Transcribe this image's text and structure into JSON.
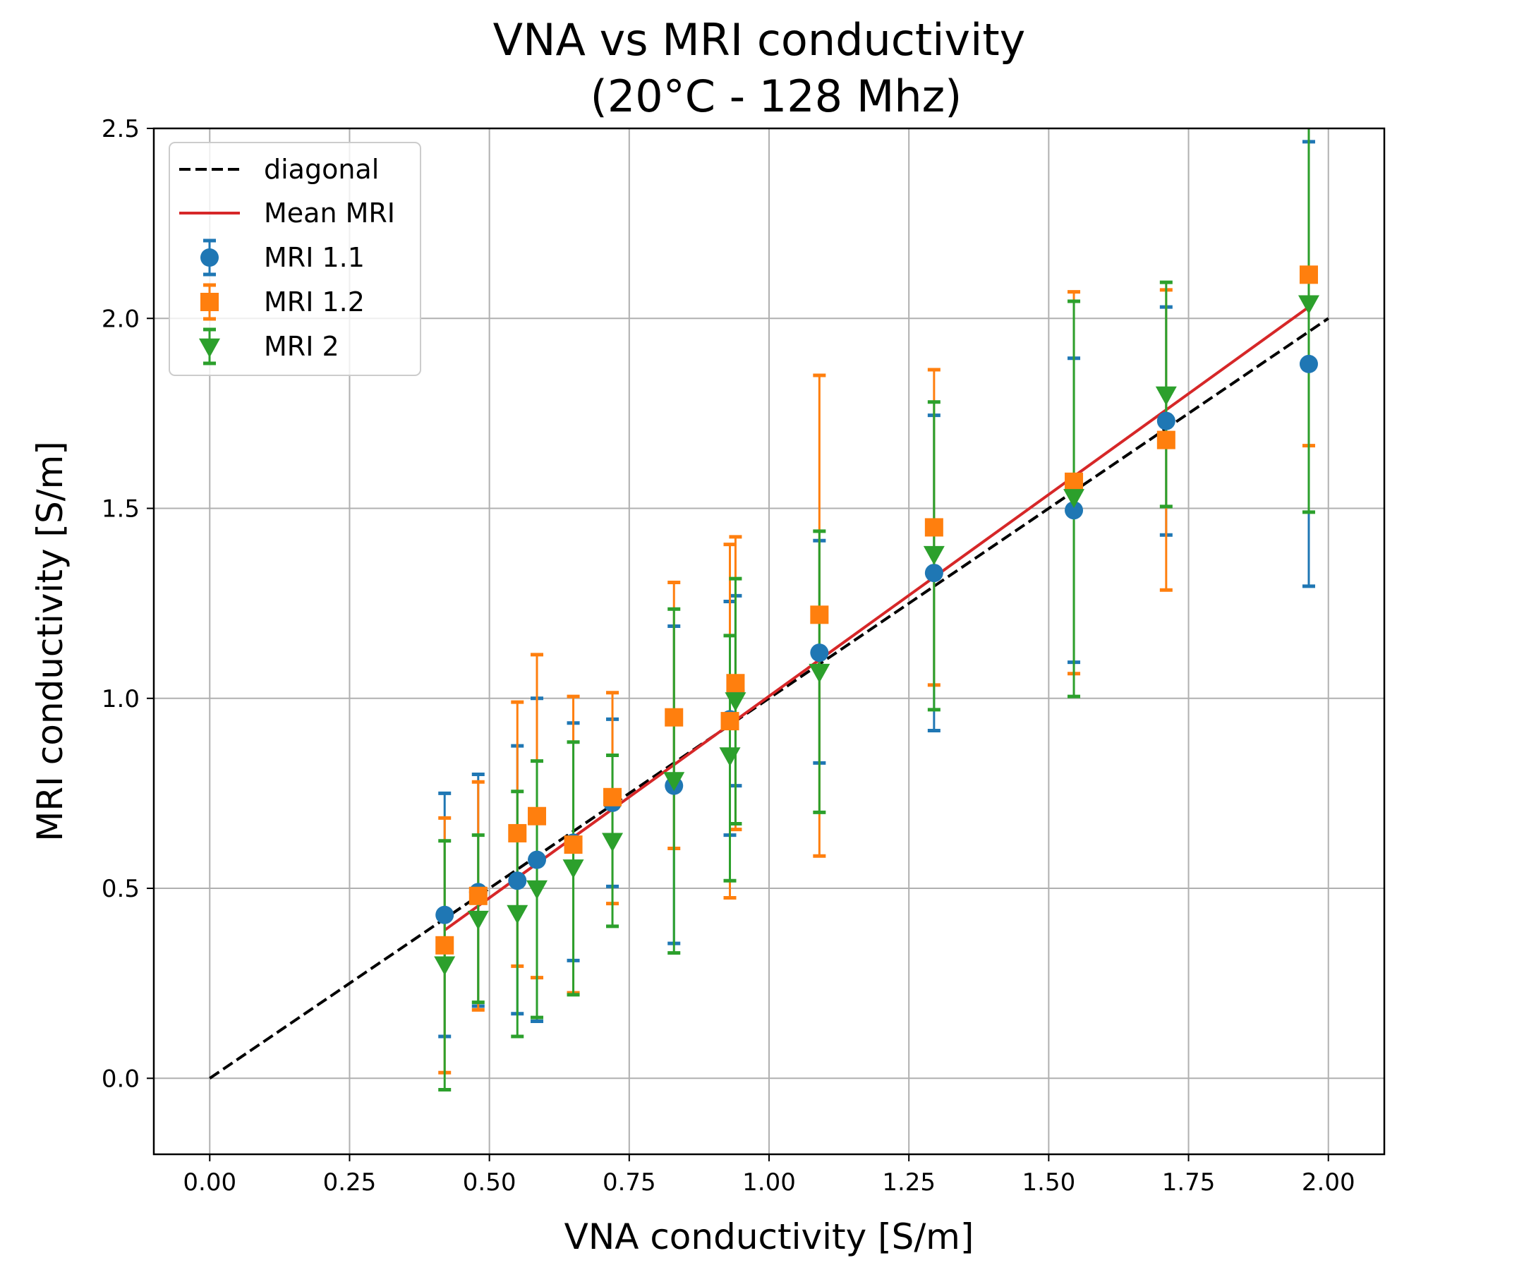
{
  "chart_data": {
    "type": "scatter",
    "title_line1": "VNA vs MRI conductivity",
    "title_line2": "(20°C - 128 Mhz)",
    "xlabel": "VNA conductivity [S/m]",
    "ylabel": "MRI conductivity [S/m]",
    "xlim": [
      -0.1,
      2.1
    ],
    "ylim": [
      -0.2,
      2.5
    ],
    "x_ticks": [
      0.0,
      0.25,
      0.5,
      0.75,
      1.0,
      1.25,
      1.5,
      1.75,
      2.0
    ],
    "x_tick_labels": [
      "0.00",
      "0.25",
      "0.50",
      "0.75",
      "1.00",
      "1.25",
      "1.50",
      "1.75",
      "2.00"
    ],
    "y_ticks": [
      0.0,
      0.5,
      1.0,
      1.5,
      2.0,
      2.5
    ],
    "y_tick_labels": [
      "0.0",
      "0.5",
      "1.0",
      "1.5",
      "2.0",
      "2.5"
    ],
    "grid": true,
    "legend_position": "top-left",
    "x": [
      0.42,
      0.48,
      0.55,
      0.585,
      0.65,
      0.72,
      0.83,
      0.93,
      0.94,
      1.09,
      1.295,
      1.545,
      1.71,
      1.965
    ],
    "lines": [
      {
        "name": "diagonal",
        "color": "#000000",
        "dash": true,
        "x": [
          0.0,
          2.0
        ],
        "y": [
          0.0,
          2.0
        ]
      },
      {
        "name": "Mean MRI",
        "color": "#d62728",
        "dash": false,
        "x": [
          0.42,
          1.965
        ],
        "y": [
          0.39,
          2.03
        ]
      }
    ],
    "series": [
      {
        "name": "MRI 1.1",
        "marker": "circle",
        "color": "#1f77b4",
        "y": [
          0.43,
          0.49,
          0.52,
          0.575,
          0.62,
          0.725,
          0.77,
          0.945,
          1.02,
          1.12,
          1.33,
          1.495,
          1.73,
          1.88
        ],
        "y_low": [
          0.11,
          0.19,
          0.17,
          0.15,
          0.31,
          0.505,
          0.355,
          0.64,
          0.77,
          0.83,
          0.915,
          1.095,
          1.43,
          1.295
        ],
        "y_high": [
          0.75,
          0.8,
          0.875,
          1.0,
          0.935,
          0.945,
          1.19,
          1.255,
          1.27,
          1.415,
          1.745,
          1.895,
          2.03,
          2.465
        ]
      },
      {
        "name": "MRI 1.2",
        "marker": "square",
        "color": "#ff7f0e",
        "y": [
          0.35,
          0.48,
          0.645,
          0.69,
          0.615,
          0.74,
          0.95,
          0.94,
          1.04,
          1.22,
          1.45,
          1.57,
          1.68,
          2.115
        ],
        "y_low": [
          0.015,
          0.18,
          0.295,
          0.265,
          0.225,
          0.46,
          0.605,
          0.475,
          0.655,
          0.585,
          1.035,
          1.065,
          1.285,
          1.665
        ],
        "y_high": [
          0.685,
          0.78,
          0.99,
          1.115,
          1.005,
          1.015,
          1.305,
          1.405,
          1.425,
          1.85,
          1.865,
          2.07,
          2.075,
          2.56
        ]
      },
      {
        "name": "MRI 2",
        "marker": "triangle-down",
        "color": "#2ca02c",
        "y": [
          0.3,
          0.42,
          0.435,
          0.5,
          0.555,
          0.625,
          0.785,
          0.85,
          0.995,
          1.07,
          1.38,
          1.53,
          1.8,
          2.04
        ],
        "y_low": [
          -0.03,
          0.2,
          0.11,
          0.16,
          0.22,
          0.4,
          0.33,
          0.52,
          0.67,
          0.7,
          0.97,
          1.005,
          1.505,
          1.49
        ],
        "y_high": [
          0.625,
          0.64,
          0.755,
          0.835,
          0.885,
          0.85,
          1.235,
          1.165,
          1.315,
          1.44,
          1.78,
          2.045,
          2.095,
          2.6
        ]
      }
    ]
  }
}
